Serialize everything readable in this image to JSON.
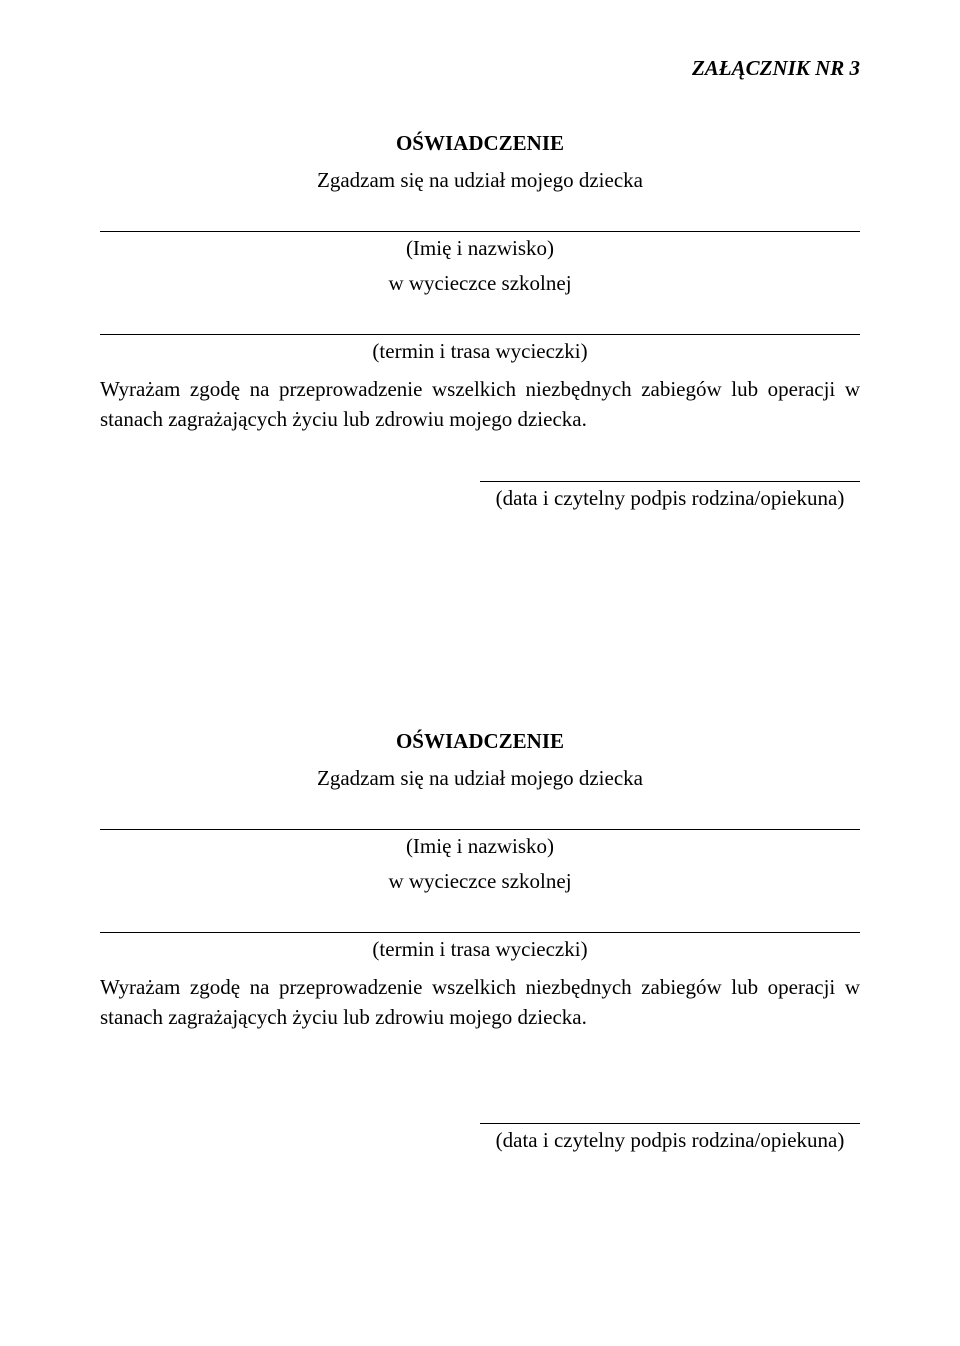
{
  "annex_header": "ZAŁĄCZNIK NR 3",
  "declaration1": {
    "title": "OŚWIADCZENIE",
    "consent_line": "Zgadzam się na udział mojego dziecka",
    "name_label": "(Imię i nazwisko)",
    "trip_line": "w wycieczce szkolnej",
    "trip_details_label": "(termin i trasa wycieczki)",
    "paragraph": "Wyrażam zgodę na przeprowadzenie wszelkich niezbędnych zabiegów lub operacji w  stanach zagrażających życiu lub zdrowiu mojego dziecka.",
    "signature_label": "(data i czytelny podpis rodzina/opiekuna)"
  },
  "declaration2": {
    "title": "OŚWIADCZENIE",
    "consent_line": "Zgadzam się na udział mojego dziecka",
    "name_label": "(Imię i nazwisko)",
    "trip_line": "w wycieczce szkolnej",
    "trip_details_label": "(termin i trasa wycieczki)",
    "paragraph": "Wyrażam zgodę na przeprowadzenie wszelkich niezbędnych zabiegów lub operacji w stanach zagrażających życiu lub zdrowiu mojego dziecka.",
    "signature_label": "(data i czytelny podpis rodzina/opiekuna)"
  },
  "colors": {
    "background": "#ffffff",
    "text": "#000000",
    "line": "#000000"
  },
  "typography": {
    "font_family": "Times New Roman",
    "body_fontsize_pt": 16,
    "title_weight": "bold",
    "annex_style": "italic bold"
  }
}
